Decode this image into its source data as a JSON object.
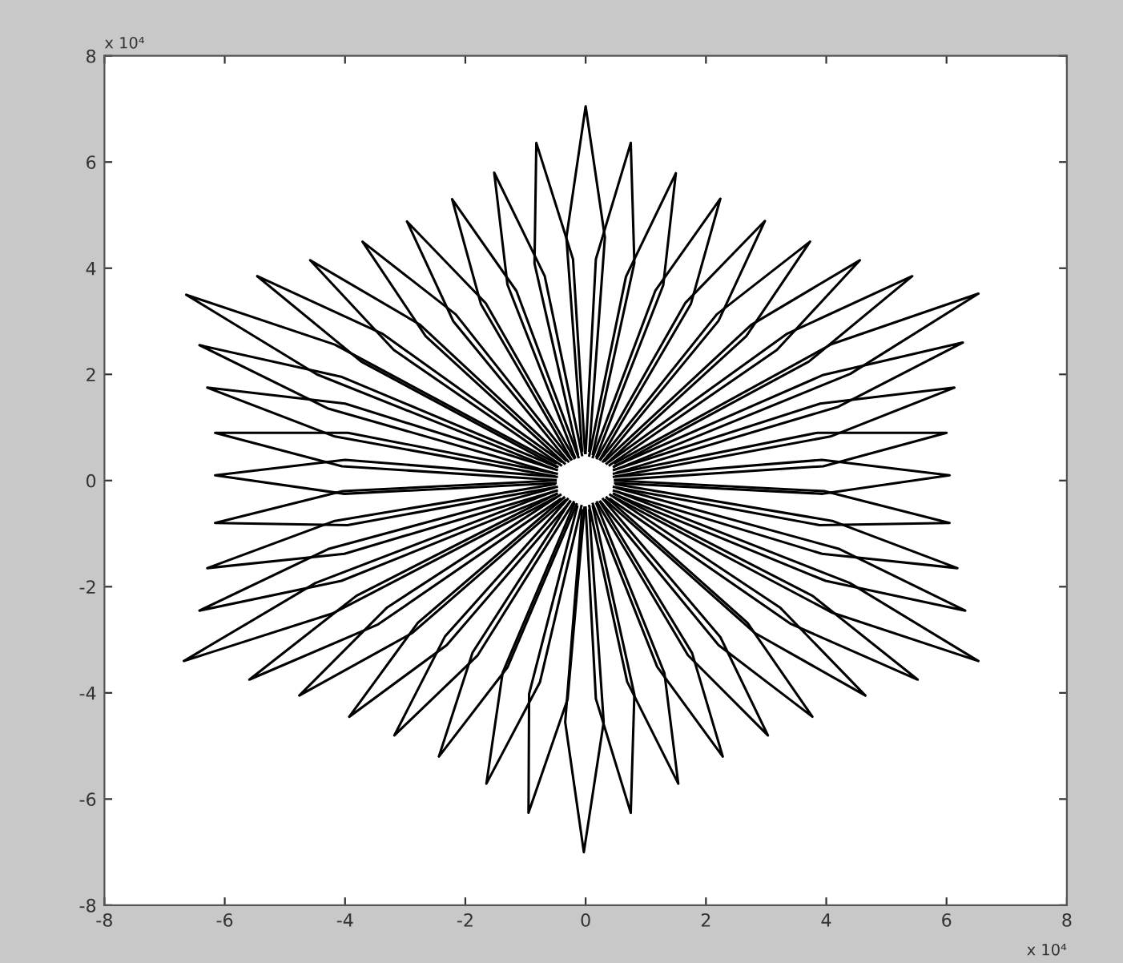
{
  "chart_data": {
    "type": "line",
    "xlim": [
      -8,
      8
    ],
    "ylim": [
      -8,
      8
    ],
    "xticks": [
      -8,
      -6,
      -4,
      -2,
      0,
      2,
      4,
      6,
      8
    ],
    "yticks": [
      -8,
      -6,
      -4,
      -2,
      0,
      2,
      4,
      6,
      8
    ],
    "grid": false,
    "marker": "none",
    "line_style": "solid",
    "annotations": [
      "x 10⁴",
      "x 10⁴"
    ],
    "series": [
      {
        "color": "#000000",
        "x": [
          0.06,
          0.32,
          0,
          -0.32,
          -0.06
        ],
        "values": [
          0.56,
          4.58,
          7.05,
          4.58,
          0.56
        ]
      },
      {
        "color": "#000000",
        "x": [
          0.12,
          0.81,
          0.75,
          0.17,
          0.0
        ],
        "values": [
          0.5,
          4.1,
          6.36,
          4.17,
          0.52
        ]
      },
      {
        "color": "#000000",
        "x": [
          0.18,
          1.29,
          1.5,
          0.67,
          0.06
        ],
        "values": [
          0.45,
          3.68,
          5.79,
          3.84,
          0.47
        ]
      },
      {
        "color": "#000000",
        "x": [
          0.24,
          1.75,
          2.24,
          1.16,
          0.12
        ],
        "values": [
          0.4,
          3.33,
          5.31,
          3.58,
          0.44
        ]
      },
      {
        "color": "#000000",
        "x": [
          0.29,
          2.21,
          2.98,
          1.66,
          0.19
        ],
        "values": [
          0.36,
          3.01,
          4.89,
          3.35,
          0.42
        ]
      },
      {
        "color": "#000000",
        "x": [
          0.35,
          2.67,
          3.73,
          2.18,
          0.25
        ],
        "values": [
          0.32,
          2.72,
          4.5,
          3.13,
          0.4
        ]
      },
      {
        "color": "#000000",
        "x": [
          0.4,
          3.18,
          4.56,
          2.75,
          0.32
        ],
        "values": [
          0.29,
          2.46,
          4.15,
          2.93,
          0.37
        ]
      },
      {
        "color": "#000000",
        "x": [
          0.47,
          3.71,
          5.43,
          3.34,
          0.4
        ],
        "values": [
          0.26,
          2.24,
          3.85,
          2.76,
          0.36
        ]
      },
      {
        "color": "#000000",
        "x": [
          0.55,
          4.4,
          6.53,
          4.09,
          0.49
        ],
        "values": [
          0.23,
          2.01,
          3.52,
          2.57,
          0.33
        ]
      },
      {
        "color": "#000000",
        "x": [
          0.52,
          4.2,
          6.27,
          3.95,
          0.48
        ],
        "values": [
          0.15,
          1.39,
          2.6,
          1.99,
          0.27
        ]
      },
      {
        "color": "#000000",
        "x": [
          0.51,
          4.07,
          6.13,
          3.9,
          0.47
        ],
        "values": [
          0.08,
          0.83,
          1.75,
          1.45,
          0.2
        ]
      },
      {
        "color": "#000000",
        "x": [
          0.49,
          3.95,
          6.0,
          3.85,
          0.47
        ],
        "values": [
          0.01,
          0.27,
          0.9,
          0.9,
          0.13
        ]
      },
      {
        "color": "#000000",
        "x": [
          0.49,
          3.94,
          6.05,
          3.93,
          0.47
        ],
        "values": [
          -0.05,
          -0.25,
          0.1,
          0.39,
          0.07
        ]
      },
      {
        "color": "#000000",
        "x": [
          0.47,
          3.89,
          6.05,
          3.97,
          0.49
        ],
        "values": [
          -0.12,
          -0.84,
          -0.8,
          -0.2,
          0.0
        ]
      },
      {
        "color": "#000000",
        "x": [
          0.47,
          3.93,
          6.18,
          4.1,
          0.51
        ],
        "values": [
          -0.19,
          -1.38,
          -1.65,
          -0.76,
          -0.07
        ]
      },
      {
        "color": "#000000",
        "x": [
          0.48,
          3.99,
          6.31,
          4.22,
          0.52
        ],
        "values": [
          -0.26,
          -1.89,
          -2.45,
          -1.29,
          -0.14
        ]
      },
      {
        "color": "#000000",
        "x": [
          0.49,
          4.1,
          6.53,
          4.39,
          0.55
        ],
        "values": [
          -0.32,
          -2.49,
          -3.4,
          -1.93,
          -0.22
        ]
      },
      {
        "color": "#000000",
        "x": [
          0.41,
          3.41,
          5.52,
          3.77,
          0.47
        ],
        "values": [
          -0.35,
          -2.7,
          -3.75,
          -2.17,
          -0.25
        ]
      },
      {
        "color": "#000000",
        "x": [
          0.33,
          2.81,
          4.65,
          3.23,
          0.41
        ],
        "values": [
          -0.37,
          -2.87,
          -4.05,
          -2.39,
          -0.27
        ]
      },
      {
        "color": "#000000",
        "x": [
          0.25,
          2.21,
          3.77,
          2.69,
          0.35
        ],
        "values": [
          -0.4,
          -3.1,
          -4.45,
          -2.68,
          -0.32
        ]
      },
      {
        "color": "#000000",
        "x": [
          0.19,
          1.7,
          3.03,
          2.24,
          0.29
        ],
        "values": [
          -0.41,
          -3.29,
          -4.8,
          -2.95,
          -0.35
        ]
      },
      {
        "color": "#000000",
        "x": [
          0.12,
          1.19,
          2.28,
          1.77,
          0.24
        ],
        "values": [
          -0.44,
          -3.51,
          -5.2,
          -3.25,
          -0.4
        ]
      },
      {
        "color": "#000000",
        "x": [
          0.06,
          0.69,
          1.54,
          1.31,
          0.18
        ],
        "values": [
          -0.48,
          -3.79,
          -5.71,
          -3.63,
          -0.44
        ]
      },
      {
        "color": "#000000",
        "x": [
          0.0,
          0.17,
          0.75,
          0.81,
          0.12
        ],
        "values": [
          -0.51,
          -4.11,
          -6.26,
          -4.03,
          -0.49
        ]
      },
      {
        "color": "#000000",
        "x": [
          -0.06,
          -0.34,
          -0.03,
          0.3,
          0.06
        ],
        "values": [
          -0.56,
          -4.55,
          -7.0,
          -4.55,
          -0.56
        ]
      },
      {
        "color": "#000000",
        "x": [
          -0.14,
          -0.94,
          -0.95,
          -0.3,
          -0.02
        ],
        "values": [
          -0.49,
          -4.02,
          -6.26,
          -4.12,
          -0.51
        ]
      },
      {
        "color": "#000000",
        "x": [
          -0.19,
          -1.38,
          -1.65,
          -0.76,
          -0.07
        ],
        "values": [
          -0.44,
          -3.62,
          -5.71,
          -3.8,
          -0.48
        ]
      },
      {
        "color": "#000000",
        "x": [
          -0.26,
          -1.88,
          -2.44,
          -1.3,
          -0.15
        ],
        "values": [
          -0.39,
          -3.24,
          -5.2,
          -3.52,
          -0.45
        ]
      },
      {
        "color": "#000000",
        "x": [
          -0.3,
          -2.34,
          -3.18,
          -1.8,
          -0.2
        ],
        "values": [
          -0.35,
          -2.94,
          -4.8,
          -3.3,
          -0.41
        ]
      },
      {
        "color": "#000000",
        "x": [
          -0.36,
          -2.79,
          -3.93,
          -2.31,
          -0.26
        ],
        "values": [
          -0.32,
          -2.68,
          -4.45,
          -3.1,
          -0.4
        ]
      },
      {
        "color": "#000000",
        "x": [
          -0.42,
          -3.3,
          -4.76,
          -2.88,
          -0.34
        ],
        "values": [
          -0.27,
          -2.39,
          -4.05,
          -2.87,
          -0.37
        ]
      },
      {
        "color": "#000000",
        "x": [
          -0.48,
          -3.81,
          -5.59,
          -3.45,
          -0.42
        ],
        "values": [
          -0.25,
          -2.17,
          -3.75,
          -2.71,
          -0.35
        ]
      },
      {
        "color": "#000000",
        "x": [
          -0.56,
          -4.49,
          -6.68,
          -4.2,
          -0.5
        ],
        "values": [
          -0.22,
          -1.93,
          -3.4,
          -2.5,
          -0.32
        ]
      },
      {
        "color": "#000000",
        "x": [
          -0.53,
          -4.28,
          -6.42,
          -4.06,
          -0.49
        ],
        "values": [
          -0.14,
          -1.29,
          -2.45,
          -1.89,
          -0.26
        ]
      },
      {
        "color": "#000000",
        "x": [
          -0.52,
          -4.17,
          -6.29,
          -4.01,
          -0.48
        ],
        "values": [
          -0.07,
          -0.76,
          -1.65,
          -1.38,
          -0.19
        ]
      },
      {
        "color": "#000000",
        "x": [
          -0.5,
          -4.04,
          -6.16,
          -3.96,
          -0.48
        ],
        "values": [
          0.0,
          -0.2,
          -0.8,
          -0.84,
          -0.12
        ]
      },
      {
        "color": "#000000",
        "x": [
          -0.48,
          -4.0,
          -6.16,
          -4.01,
          -0.5
        ],
        "values": [
          0.07,
          0.39,
          0.1,
          -0.25,
          -0.05
        ]
      },
      {
        "color": "#000000",
        "x": [
          -0.48,
          -3.95,
          -6.16,
          -4.05,
          -0.5
        ],
        "values": [
          0.13,
          0.9,
          0.9,
          0.27,
          0.01
        ]
      },
      {
        "color": "#000000",
        "x": [
          -0.48,
          -4.0,
          -6.29,
          -4.17,
          -0.52
        ],
        "values": [
          0.2,
          1.45,
          1.75,
          0.83,
          0.08
        ]
      },
      {
        "color": "#000000",
        "x": [
          -0.49,
          -4.05,
          -6.42,
          -4.29,
          -0.53
        ],
        "values": [
          0.26,
          1.95,
          2.55,
          1.36,
          0.14
        ]
      },
      {
        "color": "#000000",
        "x": [
          -0.5,
          -4.17,
          -6.64,
          -4.47,
          -0.56
        ],
        "values": [
          0.33,
          2.56,
          3.5,
          2.0,
          0.23
        ]
      },
      {
        "color": "#000000",
        "x": [
          -0.41,
          -3.37,
          -5.46,
          -3.73,
          -0.47
        ],
        "values": [
          0.36,
          2.76,
          3.85,
          2.24,
          0.26
        ]
      },
      {
        "color": "#000000",
        "x": [
          -0.33,
          -2.76,
          -4.58,
          -3.19,
          -0.41
        ],
        "values": [
          0.38,
          2.94,
          4.15,
          2.46,
          0.29
        ]
      },
      {
        "color": "#000000",
        "x": [
          -0.25,
          -2.16,
          -3.71,
          -2.66,
          -0.35
        ],
        "values": [
          0.4,
          3.13,
          4.5,
          2.72,
          0.32
        ]
      },
      {
        "color": "#000000",
        "x": [
          -0.19,
          -1.66,
          -2.97,
          -2.2,
          -0.29
        ],
        "values": [
          0.42,
          3.34,
          4.88,
          3.0,
          0.36
        ]
      },
      {
        "color": "#000000",
        "x": [
          -0.12,
          -1.15,
          -2.22,
          -1.74,
          -0.24
        ],
        "values": [
          0.44,
          3.57,
          5.3,
          3.32,
          0.4
        ]
      },
      {
        "color": "#000000",
        "x": [
          -0.06,
          -0.68,
          -1.52,
          -1.3,
          -0.18
        ],
        "values": [
          0.48,
          3.85,
          5.8,
          3.69,
          0.44
        ]
      },
      {
        "color": "#000000",
        "x": [
          -0.01,
          -0.21,
          -0.82,
          -0.85,
          -0.13
        ],
        "values": [
          0.52,
          4.17,
          6.36,
          4.09,
          0.5
        ]
      }
    ]
  }
}
